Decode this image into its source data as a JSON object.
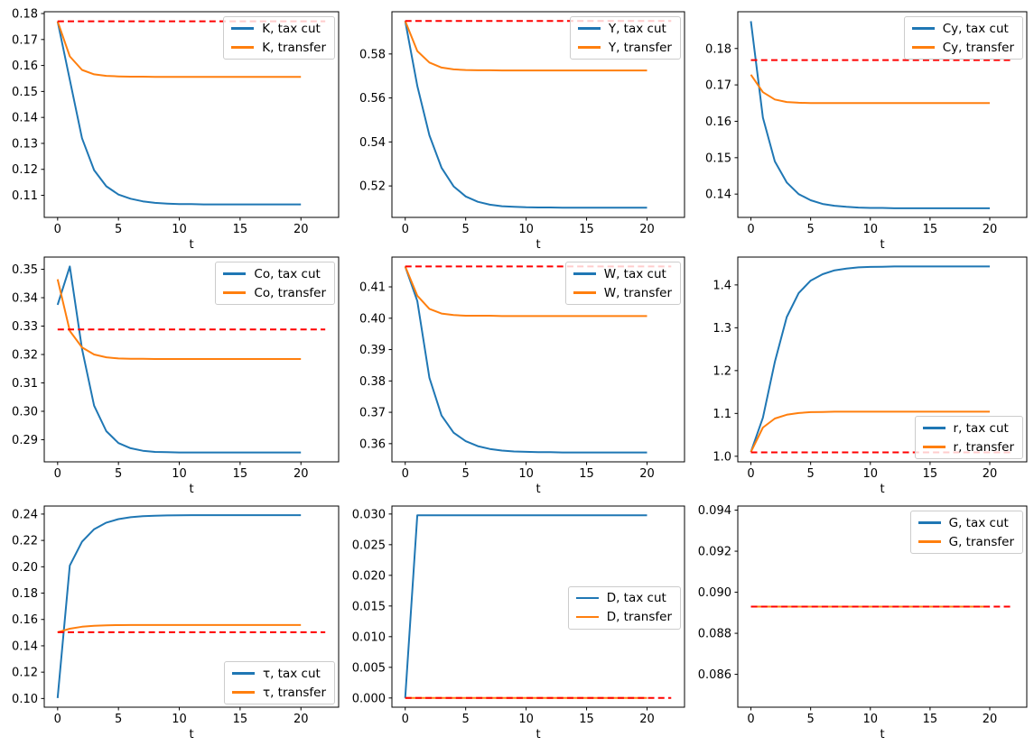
{
  "figure": {
    "background": "#ffffff",
    "description": "3x3 grid of line plots comparing transition paths after a tax cut vs a transfer, each with a dashed red old-steady-state reference line",
    "colors": {
      "tax_cut": "#1f77b4",
      "transfer": "#ff7f0e",
      "reference": "#ff0000",
      "legend_border": "#cccccc",
      "axes": "#000000"
    }
  },
  "chart_data": [
    {
      "type": "line",
      "id": "K",
      "xlabel": "t",
      "x": [
        0,
        1,
        2,
        3,
        4,
        5,
        6,
        7,
        8,
        9,
        10,
        11,
        12,
        13,
        14,
        15,
        16,
        17,
        18,
        19,
        20
      ],
      "xticks": [
        0,
        5,
        10,
        15,
        20
      ],
      "xlim": [
        -1.1,
        23.1
      ],
      "yticks": [
        0.11,
        0.12,
        0.13,
        0.14,
        0.15,
        0.16,
        0.17,
        0.18
      ],
      "tick_decimals": 2,
      "ylim": [
        0.1015,
        0.1807
      ],
      "legend_position": "upper-right",
      "series": [
        {
          "name": "K, tax cut",
          "key": "tax-cut",
          "color": "#1f77b4",
          "values": [
            0.177,
            0.1545,
            0.132,
            0.1197,
            0.1135,
            0.1103,
            0.1087,
            0.1077,
            0.1071,
            0.1068,
            0.1066,
            0.1066,
            0.1065,
            0.1065,
            0.1065,
            0.1065,
            0.1065,
            0.1065,
            0.1065,
            0.1065,
            0.1065
          ]
        },
        {
          "name": "K, transfer",
          "key": "transfer",
          "color": "#ff7f0e",
          "values": [
            0.177,
            0.1635,
            0.1583,
            0.1566,
            0.156,
            0.1558,
            0.1557,
            0.1557,
            0.1556,
            0.1556,
            0.1556,
            0.1556,
            0.1556,
            0.1556,
            0.1556,
            0.1556,
            0.1556,
            0.1556,
            0.1556,
            0.1556,
            0.1556
          ]
        }
      ],
      "reference": {
        "value": 0.177,
        "color": "#ff0000",
        "style": "dashed",
        "x_start": 0,
        "x_end": 22
      }
    },
    {
      "type": "line",
      "id": "Y",
      "xlabel": "t",
      "x": [
        0,
        1,
        2,
        3,
        4,
        5,
        6,
        7,
        8,
        9,
        10,
        11,
        12,
        13,
        14,
        15,
        16,
        17,
        18,
        19,
        20
      ],
      "xticks": [
        0,
        5,
        10,
        15,
        20
      ],
      "xlim": [
        -1.1,
        23.1
      ],
      "yticks": [
        0.52,
        0.54,
        0.56,
        0.58
      ],
      "tick_decimals": 2,
      "ylim": [
        0.5057,
        0.5992
      ],
      "legend_position": "upper-right",
      "series": [
        {
          "name": "Y, tax cut",
          "key": "tax-cut",
          "color": "#1f77b4",
          "values": [
            0.595,
            0.5655,
            0.543,
            0.5283,
            0.5198,
            0.5152,
            0.5128,
            0.5115,
            0.5108,
            0.5105,
            0.5103,
            0.5102,
            0.5102,
            0.5101,
            0.5101,
            0.5101,
            0.5101,
            0.5101,
            0.5101,
            0.5101,
            0.5101
          ]
        },
        {
          "name": "Y, transfer",
          "key": "transfer",
          "color": "#ff7f0e",
          "values": [
            0.595,
            0.5813,
            0.5761,
            0.5738,
            0.573,
            0.5727,
            0.5726,
            0.5726,
            0.5725,
            0.5725,
            0.5725,
            0.5725,
            0.5725,
            0.5725,
            0.5725,
            0.5725,
            0.5725,
            0.5725,
            0.5725,
            0.5725,
            0.5725
          ]
        }
      ],
      "reference": {
        "value": 0.595,
        "color": "#ff0000",
        "style": "dashed",
        "x_start": 0,
        "x_end": 22
      }
    },
    {
      "type": "line",
      "id": "Cy",
      "xlabel": "t",
      "x": [
        0,
        1,
        2,
        3,
        4,
        5,
        6,
        7,
        8,
        9,
        10,
        11,
        12,
        13,
        14,
        15,
        16,
        17,
        18,
        19,
        20
      ],
      "xticks": [
        0,
        5,
        10,
        15,
        20
      ],
      "xlim": [
        -1.1,
        23.1
      ],
      "yticks": [
        0.14,
        0.15,
        0.16,
        0.17,
        0.18
      ],
      "tick_decimals": 2,
      "ylim": [
        0.1336,
        0.1901
      ],
      "legend_position": "upper-right",
      "series": [
        {
          "name": "Cy, tax cut",
          "key": "tax-cut",
          "color": "#1f77b4",
          "values": [
            0.1875,
            0.161,
            0.149,
            0.1432,
            0.14,
            0.1383,
            0.1373,
            0.1368,
            0.1365,
            0.1363,
            0.1362,
            0.1362,
            0.1361,
            0.1361,
            0.1361,
            0.1361,
            0.1361,
            0.1361,
            0.1361,
            0.1361,
            0.1361
          ]
        },
        {
          "name": "Cy, transfer",
          "key": "transfer",
          "color": "#ff7f0e",
          "values": [
            0.1728,
            0.168,
            0.166,
            0.1653,
            0.1651,
            0.165,
            0.165,
            0.165,
            0.165,
            0.165,
            0.165,
            0.165,
            0.165,
            0.165,
            0.165,
            0.165,
            0.165,
            0.165,
            0.165,
            0.165,
            0.165
          ]
        }
      ],
      "reference": {
        "value": 0.1768,
        "color": "#ff0000",
        "style": "dashed",
        "x_start": 0,
        "x_end": 22
      }
    },
    {
      "type": "line",
      "id": "Co",
      "xlabel": "t",
      "x": [
        0,
        1,
        2,
        3,
        4,
        5,
        6,
        7,
        8,
        9,
        10,
        11,
        12,
        13,
        14,
        15,
        16,
        17,
        18,
        19,
        20
      ],
      "xticks": [
        0,
        5,
        10,
        15,
        20
      ],
      "xlim": [
        -1.1,
        23.1
      ],
      "yticks": [
        0.29,
        0.3,
        0.31,
        0.32,
        0.33,
        0.34,
        0.35
      ],
      "tick_decimals": 2,
      "ylim": [
        0.2822,
        0.3543
      ],
      "legend_position": "upper-right",
      "series": [
        {
          "name": "Co, tax cut",
          "key": "tax-cut",
          "color": "#1f77b4",
          "values": [
            0.3375,
            0.351,
            0.322,
            0.302,
            0.293,
            0.2888,
            0.287,
            0.2861,
            0.2857,
            0.2856,
            0.2855,
            0.2855,
            0.2855,
            0.2855,
            0.2855,
            0.2855,
            0.2855,
            0.2855,
            0.2855,
            0.2855,
            0.2855
          ]
        },
        {
          "name": "Co, transfer",
          "key": "transfer",
          "color": "#ff7f0e",
          "values": [
            0.3465,
            0.3283,
            0.3225,
            0.32,
            0.319,
            0.3186,
            0.3185,
            0.3185,
            0.3184,
            0.3184,
            0.3184,
            0.3184,
            0.3184,
            0.3184,
            0.3184,
            0.3184,
            0.3184,
            0.3184,
            0.3184,
            0.3184,
            0.3184
          ]
        }
      ],
      "reference": {
        "value": 0.3288,
        "color": "#ff0000",
        "style": "dashed",
        "x_start": 0,
        "x_end": 22
      }
    },
    {
      "type": "line",
      "id": "W",
      "xlabel": "t",
      "x": [
        0,
        1,
        2,
        3,
        4,
        5,
        6,
        7,
        8,
        9,
        10,
        11,
        12,
        13,
        14,
        15,
        16,
        17,
        18,
        19,
        20
      ],
      "xticks": [
        0,
        5,
        10,
        15,
        20
      ],
      "xlim": [
        -1.1,
        23.1
      ],
      "yticks": [
        0.36,
        0.37,
        0.38,
        0.39,
        0.4,
        0.41
      ],
      "tick_decimals": 2,
      "ylim": [
        0.3542,
        0.4195
      ],
      "legend_position": "upper-right",
      "series": [
        {
          "name": "W, tax cut",
          "key": "tax-cut",
          "color": "#1f77b4",
          "values": [
            0.4165,
            0.4055,
            0.381,
            0.369,
            0.3635,
            0.3608,
            0.3592,
            0.3583,
            0.3578,
            0.3575,
            0.3574,
            0.3573,
            0.3573,
            0.3572,
            0.3572,
            0.3572,
            0.3572,
            0.3572,
            0.3572,
            0.3572,
            0.3572
          ]
        },
        {
          "name": "W, transfer",
          "key": "transfer",
          "color": "#ff7f0e",
          "values": [
            0.4165,
            0.4072,
            0.403,
            0.4015,
            0.401,
            0.4008,
            0.4008,
            0.4008,
            0.4007,
            0.4007,
            0.4007,
            0.4007,
            0.4007,
            0.4007,
            0.4007,
            0.4007,
            0.4007,
            0.4007,
            0.4007,
            0.4007,
            0.4007
          ]
        }
      ],
      "reference": {
        "value": 0.4165,
        "color": "#ff0000",
        "style": "dashed",
        "x_start": 0,
        "x_end": 22
      }
    },
    {
      "type": "line",
      "id": "r",
      "xlabel": "t",
      "x": [
        0,
        1,
        2,
        3,
        4,
        5,
        6,
        7,
        8,
        9,
        10,
        11,
        12,
        13,
        14,
        15,
        16,
        17,
        18,
        19,
        20
      ],
      "xticks": [
        0,
        5,
        10,
        15,
        20
      ],
      "xlim": [
        -1.1,
        23.1
      ],
      "yticks": [
        1.0,
        1.1,
        1.2,
        1.3,
        1.4
      ],
      "tick_decimals": 1,
      "ylim": [
        0.987,
        1.465
      ],
      "legend_position": "lower-right",
      "series": [
        {
          "name": "r, tax cut",
          "key": "tax-cut",
          "color": "#1f77b4",
          "values": [
            1.01,
            1.09,
            1.22,
            1.325,
            1.381,
            1.41,
            1.425,
            1.434,
            1.438,
            1.441,
            1.442,
            1.4425,
            1.443,
            1.443,
            1.443,
            1.443,
            1.443,
            1.443,
            1.443,
            1.443,
            1.443
          ]
        },
        {
          "name": "r, transfer",
          "key": "transfer",
          "color": "#ff7f0e",
          "values": [
            1.01,
            1.067,
            1.088,
            1.097,
            1.101,
            1.103,
            1.1035,
            1.104,
            1.104,
            1.104,
            1.104,
            1.104,
            1.104,
            1.104,
            1.104,
            1.104,
            1.104,
            1.104,
            1.104,
            1.104,
            1.104
          ]
        }
      ],
      "reference": {
        "value": 1.009,
        "color": "#ff0000",
        "style": "dashed",
        "x_start": 0,
        "x_end": 22
      }
    },
    {
      "type": "line",
      "id": "tau",
      "xlabel": "t",
      "x": [
        0,
        1,
        2,
        3,
        4,
        5,
        6,
        7,
        8,
        9,
        10,
        11,
        12,
        13,
        14,
        15,
        16,
        17,
        18,
        19,
        20
      ],
      "xticks": [
        0,
        5,
        10,
        15,
        20
      ],
      "xlim": [
        -1.1,
        23.1
      ],
      "yticks": [
        0.1,
        0.12,
        0.14,
        0.16,
        0.18,
        0.2,
        0.22,
        0.24
      ],
      "tick_decimals": 2,
      "ylim": [
        0.0934,
        0.2461
      ],
      "legend_position": "lower-right",
      "series": [
        {
          "name": "τ, tax cut",
          "key": "tax-cut",
          "color": "#1f77b4",
          "values": [
            0.1003,
            0.201,
            0.219,
            0.2285,
            0.2335,
            0.2362,
            0.2376,
            0.2384,
            0.2388,
            0.239,
            0.2391,
            0.2392,
            0.2392,
            0.2392,
            0.2392,
            0.2392,
            0.2392,
            0.2392,
            0.2392,
            0.2392,
            0.2392
          ]
        },
        {
          "name": "τ, transfer",
          "key": "transfer",
          "color": "#ff7f0e",
          "values": [
            0.1503,
            0.153,
            0.1545,
            0.1552,
            0.1556,
            0.1557,
            0.1558,
            0.1558,
            0.1558,
            0.1558,
            0.1558,
            0.1558,
            0.1558,
            0.1558,
            0.1558,
            0.1558,
            0.1558,
            0.1558,
            0.1558,
            0.1558,
            0.1558
          ]
        }
      ],
      "reference": {
        "value": 0.1503,
        "color": "#ff0000",
        "style": "dashed",
        "x_start": 0,
        "x_end": 22
      }
    },
    {
      "type": "line",
      "id": "D",
      "xlabel": "t",
      "x": [
        0,
        1,
        2,
        3,
        4,
        5,
        6,
        7,
        8,
        9,
        10,
        11,
        12,
        13,
        14,
        15,
        16,
        17,
        18,
        19,
        20
      ],
      "xticks": [
        0,
        5,
        10,
        15,
        20
      ],
      "xlim": [
        -1.1,
        23.1
      ],
      "yticks": [
        0.0,
        0.005,
        0.01,
        0.015,
        0.02,
        0.025,
        0.03
      ],
      "tick_decimals": 3,
      "ylim": [
        -0.0015,
        0.0313
      ],
      "legend_position": "center-right",
      "series": [
        {
          "name": "D, tax cut",
          "key": "tax-cut",
          "color": "#1f77b4",
          "values": [
            0.0,
            0.0298,
            0.0298,
            0.0298,
            0.0298,
            0.0298,
            0.0298,
            0.0298,
            0.0298,
            0.0298,
            0.0298,
            0.0298,
            0.0298,
            0.0298,
            0.0298,
            0.0298,
            0.0298,
            0.0298,
            0.0298,
            0.0298,
            0.0298
          ]
        },
        {
          "name": "D, transfer",
          "key": "transfer",
          "color": "#ff7f0e",
          "values": [
            0.0,
            0.0,
            0.0,
            0.0,
            0.0,
            0.0,
            0.0,
            0.0,
            0.0,
            0.0,
            0.0,
            0.0,
            0.0,
            0.0,
            0.0,
            0.0,
            0.0,
            0.0,
            0.0,
            0.0,
            0.0
          ]
        }
      ],
      "reference": {
        "value": 0.0,
        "color": "#ff0000",
        "style": "dashed",
        "x_start": 0,
        "x_end": 22
      }
    },
    {
      "type": "line",
      "id": "G",
      "xlabel": "t",
      "x": [
        0,
        1,
        2,
        3,
        4,
        5,
        6,
        7,
        8,
        9,
        10,
        11,
        12,
        13,
        14,
        15,
        16,
        17,
        18,
        19,
        20
      ],
      "xticks": [
        0,
        5,
        10,
        15,
        20
      ],
      "xlim": [
        -1.1,
        23.1
      ],
      "yticks": [
        0.086,
        0.088,
        0.09,
        0.092,
        0.094
      ],
      "tick_decimals": 3,
      "ylim": [
        0.0844,
        0.0942
      ],
      "legend_position": "upper-right",
      "series": [
        {
          "name": "G, tax cut",
          "key": "tax-cut",
          "color": "#1f77b4",
          "values": [
            0.0893,
            0.0893,
            0.0893,
            0.0893,
            0.0893,
            0.0893,
            0.0893,
            0.0893,
            0.0893,
            0.0893,
            0.0893,
            0.0893,
            0.0893,
            0.0893,
            0.0893,
            0.0893,
            0.0893,
            0.0893,
            0.0893,
            0.0893,
            0.0893
          ]
        },
        {
          "name": "G, transfer",
          "key": "transfer",
          "color": "#ff7f0e",
          "values": [
            0.0893,
            0.0893,
            0.0893,
            0.0893,
            0.0893,
            0.0893,
            0.0893,
            0.0893,
            0.0893,
            0.0893,
            0.0893,
            0.0893,
            0.0893,
            0.0893,
            0.0893,
            0.0893,
            0.0893,
            0.0893,
            0.0893,
            0.0893,
            0.0893
          ]
        }
      ],
      "reference": {
        "value": 0.0893,
        "color": "#ff0000",
        "style": "dashed",
        "x_start": 0,
        "x_end": 22
      }
    }
  ]
}
